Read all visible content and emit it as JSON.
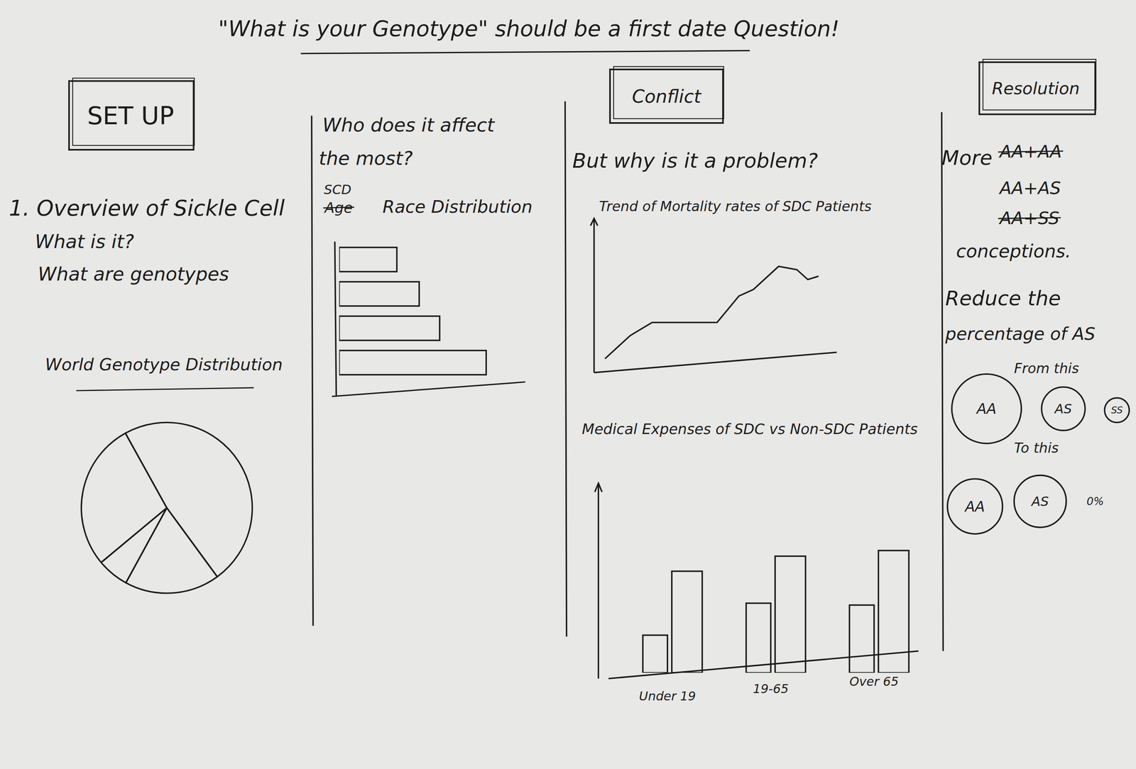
{
  "header": {
    "title": "\"What is your Genotype\" should be a first date Question!"
  },
  "setup": {
    "heading": "SET UP",
    "lines": [
      "1. Overview of Sickle Cell",
      "What is it?",
      "What are genotypes"
    ]
  },
  "who": {
    "lines": [
      "Who does it affect",
      "the most?"
    ]
  },
  "conflict": {
    "heading": "Conflict",
    "question": "But why is it a problem?"
  },
  "resolution": {
    "heading": "Resolution",
    "more": "More",
    "pairs": [
      {
        "text": "AA+AA",
        "struck": true
      },
      {
        "text": "AA+AS",
        "struck": false
      },
      {
        "text": "AA+SS",
        "struck": true
      }
    ],
    "conceptions": "conceptions.",
    "reduce": [
      "Reduce the",
      "percentage of AS"
    ],
    "from_label": "From this",
    "from": [
      "AA",
      "AS",
      "SS"
    ],
    "to_label": "To this",
    "to": [
      "AA",
      "AS",
      "0%"
    ]
  },
  "chart_data": [
    {
      "type": "pie",
      "title": "World Genotype Distribution",
      "values": [
        48,
        18,
        6,
        28
      ]
    },
    {
      "type": "bar",
      "orientation": "horizontal",
      "title": "Race Distribution",
      "annotations": [
        {
          "text": "SCD",
          "struck": false
        },
        {
          "text": "Age",
          "struck": true
        }
      ],
      "categories": [
        null,
        null,
        null,
        null
      ],
      "values": [
        31,
        43,
        54,
        79
      ],
      "xlim": [
        0,
        100
      ],
      "tick_labels": false
    },
    {
      "type": "line",
      "title": "Trend of Mortality rates of SDC Patients",
      "x": [
        4.5,
        14.9,
        23.9,
        35.8,
        50.7,
        59.7,
        65.7,
        76.1,
        83.6,
        88.1,
        92.5
      ],
      "values": [
        4.9,
        22,
        31.7,
        31.7,
        31.7,
        51.2,
        56.1,
        73.2,
        70.7,
        63.4,
        65.9
      ],
      "xlim": [
        0,
        100
      ],
      "ylim": [
        0,
        100
      ],
      "tick_labels": false
    },
    {
      "type": "bar",
      "title": "Medical Expenses of SDC vs Non-SDC Patients",
      "categories": [
        "Under 19",
        "19-65",
        "Over 65"
      ],
      "series": [
        {
          "values": [
            20,
            37,
            36
          ]
        },
        {
          "values": [
            54,
            62,
            65
          ]
        }
      ],
      "ylim": [
        0,
        100
      ],
      "tick_labels": "x"
    }
  ]
}
